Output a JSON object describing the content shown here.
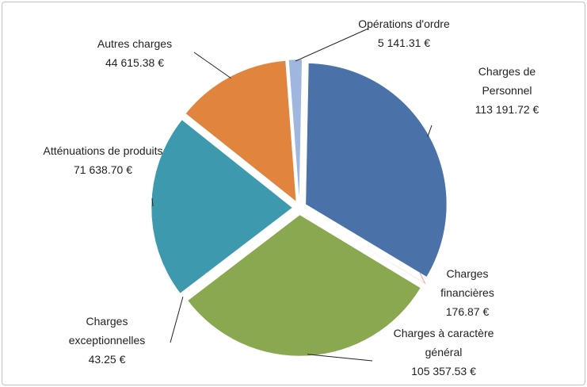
{
  "chart_data": {
    "type": "pie",
    "categories": [
      "Charges de Personnel",
      "Charges financières",
      "Charges à caractère général",
      "Charges exceptionnelles",
      "Atténuations de produits",
      "Autres charges",
      "Opérations d'ordre"
    ],
    "values": [
      113191.72,
      176.87,
      105357.53,
      43.25,
      71638.7,
      44615.38,
      5141.31
    ],
    "value_labels": [
      "113 191.72 €",
      "176.87 €",
      "105 357.53 €",
      "43.25 €",
      "71 638.70 €",
      "44 615.38 €",
      "5 141.31 €"
    ],
    "colors": [
      "#4a71a8",
      "#c0504d",
      "#8aa84f",
      "#7b63a0",
      "#3d9aae",
      "#e0843e",
      "#9fb6de"
    ]
  }
}
